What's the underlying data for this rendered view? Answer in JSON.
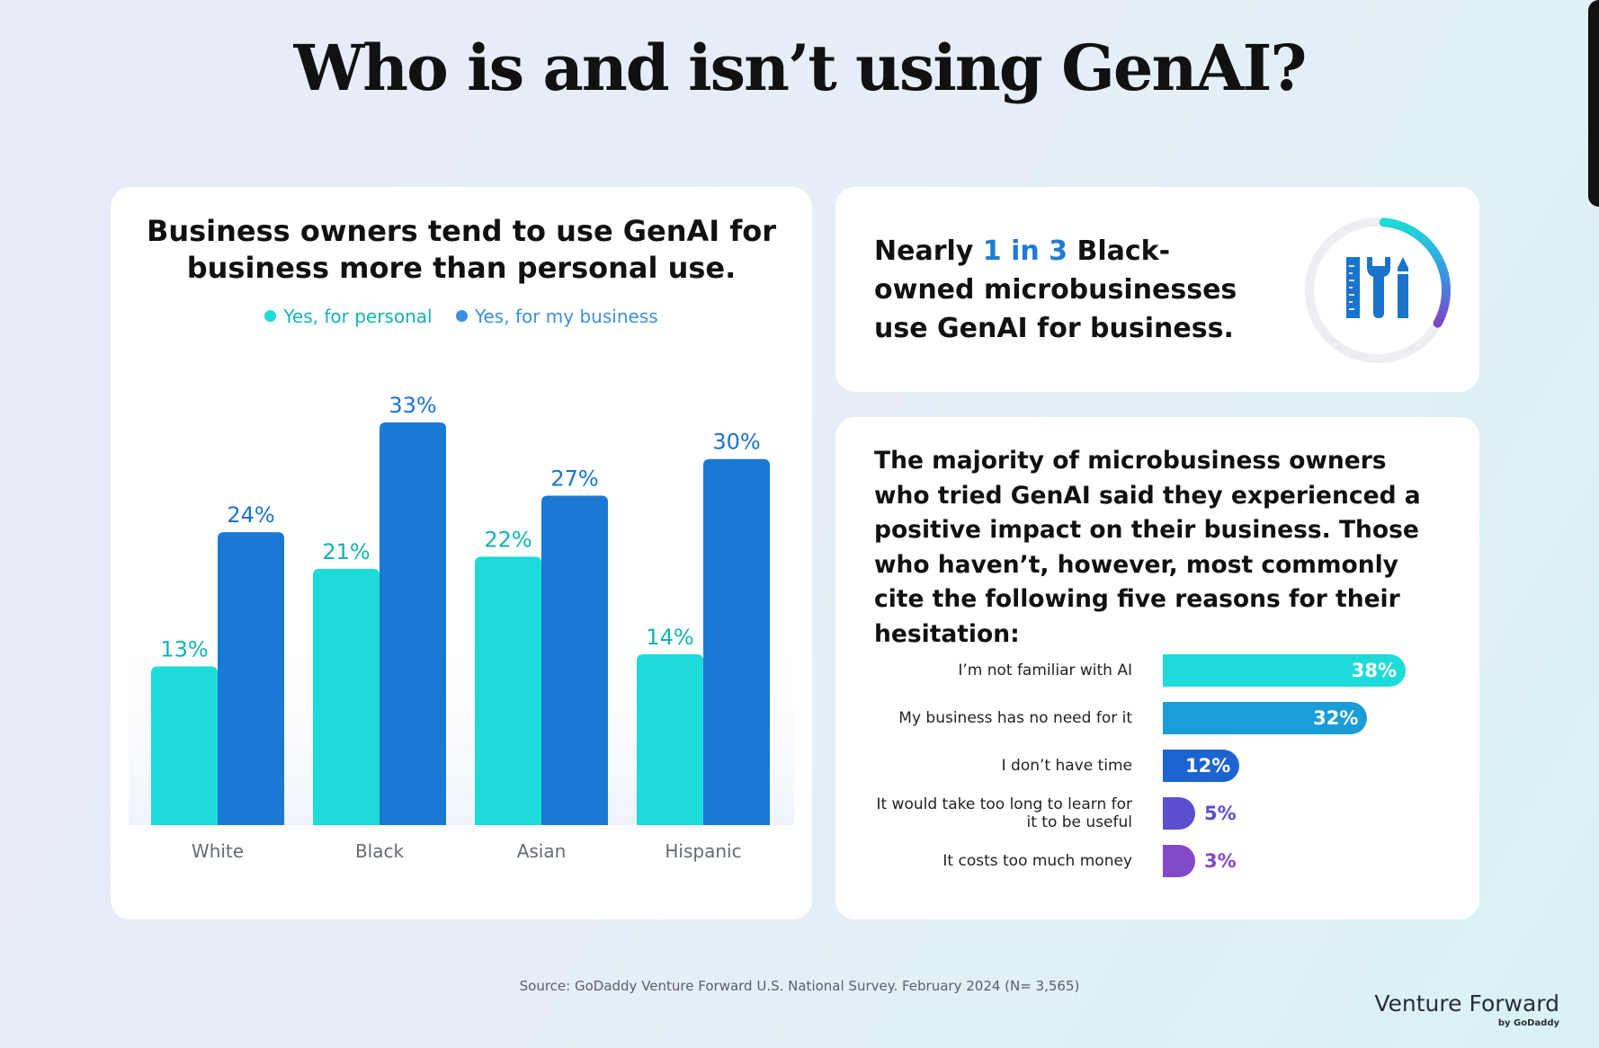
{
  "page": {
    "title": "Who is and isn’t using GenAI?",
    "source": "Source: GoDaddy Venture Forward U.S. National Survey. February 2024 (N= 3,565)",
    "brand": {
      "name": "Venture Forward",
      "byline": "by GoDaddy"
    }
  },
  "colors": {
    "personal": "#1ddbd8",
    "business": "#1a79d4",
    "personal_label": "#12b2b5",
    "business_label": "#1a74cc"
  },
  "callout": {
    "prefix": "Nearly ",
    "highlight": "1 in 3",
    "suffix": " Black-owned microbusinesses use GenAI for business.",
    "gauge_fraction": 0.33,
    "icon": "tools-icon"
  },
  "reasons": {
    "intro": "The majority of microbusiness owners who tried GenAI said they experienced a positive impact on their business. Those who haven’t, however, most commonly cite the following five reasons for their hesitation:",
    "items": [
      {
        "label": "I’m not familiar with AI",
        "value": 38,
        "display": "38%",
        "color": "#1ddbd8",
        "text_color": "#ffffff"
      },
      {
        "label": "My business has no need for it",
        "value": 32,
        "display": "32%",
        "color": "#1b9dd9",
        "text_color": "#ffffff"
      },
      {
        "label": "I don’t have time",
        "value": 12,
        "display": "12%",
        "color": "#1e63d2",
        "text_color": "#ffffff"
      },
      {
        "label": "It would take too long to learn for it to be useful",
        "value": 5,
        "display": "5%",
        "color": "#5b4fcf",
        "text_color": "#5b4fcf"
      },
      {
        "label": "It costs too much money",
        "value": 3,
        "display": "3%",
        "color": "#8348c8",
        "text_color": "#8348c8"
      }
    ]
  },
  "chart_data": [
    {
      "type": "bar",
      "title": "Business owners tend to use GenAI for business more than personal use.",
      "categories": [
        "White",
        "Black",
        "Asian",
        "Hispanic"
      ],
      "series": [
        {
          "name": "Yes, for personal",
          "values": [
            13,
            21,
            22,
            14
          ],
          "labels": [
            "13%",
            "21%",
            "22%",
            "14%"
          ]
        },
        {
          "name": "Yes, for my business",
          "values": [
            24,
            33,
            27,
            30
          ],
          "labels": [
            "24%",
            "33%",
            "27%",
            "30%"
          ]
        }
      ],
      "ylim": [
        0,
        33
      ],
      "xlabel": "",
      "ylabel": "",
      "legend": "top-center",
      "grid": false
    },
    {
      "type": "bar",
      "orientation": "horizontal",
      "categories": [
        "I’m not familiar with AI",
        "My business has no need for it",
        "I don’t have time",
        "It would take too long to learn for it to be useful",
        "It costs too much money"
      ],
      "values": [
        38,
        32,
        12,
        5,
        3
      ],
      "xlim": [
        0,
        38
      ]
    }
  ]
}
